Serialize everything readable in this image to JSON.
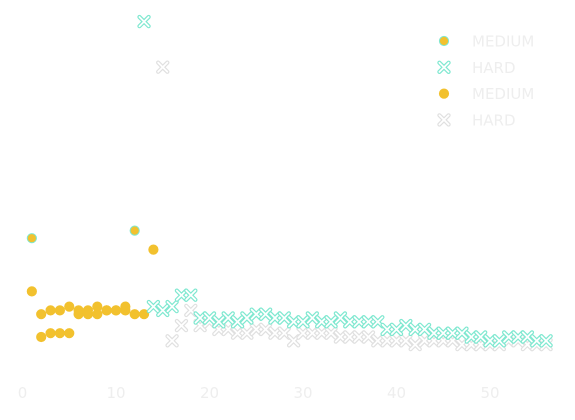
{
  "chart_data": {
    "type": "scatter",
    "title": "",
    "xlabel": "",
    "ylabel": "",
    "xlim": [
      0,
      57
    ],
    "ylim": [
      0,
      1.0
    ],
    "x_ticks": [
      0,
      10,
      20,
      30,
      40,
      50
    ],
    "x_tick_labels": [
      "0",
      "10",
      "20",
      "30",
      "40",
      "50"
    ],
    "grid": false,
    "legend_position": "top-right",
    "series": [
      {
        "name": "MEDIUM",
        "marker": "circle",
        "color": "#f2c12e",
        "edge_color": "#7fe8d0",
        "points": [
          [
            1,
            0.31
          ],
          [
            12,
            0.33
          ]
        ]
      },
      {
        "name": "HARD",
        "marker": "x",
        "color": "#7fe8d0",
        "points": [
          [
            13,
            0.88
          ],
          [
            14,
            0.13
          ],
          [
            15,
            0.12
          ],
          [
            16,
            0.13
          ],
          [
            17,
            0.16
          ],
          [
            18,
            0.16
          ],
          [
            19,
            0.1
          ],
          [
            20,
            0.1
          ],
          [
            21,
            0.09
          ],
          [
            22,
            0.1
          ],
          [
            23,
            0.09
          ],
          [
            24,
            0.1
          ],
          [
            25,
            0.11
          ],
          [
            26,
            0.11
          ],
          [
            27,
            0.1
          ],
          [
            28,
            0.1
          ],
          [
            29,
            0.09
          ],
          [
            30,
            0.09
          ],
          [
            31,
            0.1
          ],
          [
            32,
            0.09
          ],
          [
            33,
            0.09
          ],
          [
            34,
            0.1
          ],
          [
            35,
            0.09
          ],
          [
            36,
            0.09
          ],
          [
            37,
            0.09
          ],
          [
            38,
            0.09
          ],
          [
            39,
            0.07
          ],
          [
            40,
            0.07
          ],
          [
            41,
            0.08
          ],
          [
            42,
            0.07
          ],
          [
            43,
            0.07
          ],
          [
            44,
            0.06
          ],
          [
            45,
            0.06
          ],
          [
            46,
            0.06
          ],
          [
            47,
            0.06
          ],
          [
            48,
            0.05
          ],
          [
            49,
            0.05
          ],
          [
            50,
            0.04
          ],
          [
            51,
            0.04
          ],
          [
            52,
            0.05
          ],
          [
            53,
            0.05
          ],
          [
            54,
            0.05
          ],
          [
            55,
            0.04
          ],
          [
            56,
            0.04
          ]
        ]
      },
      {
        "name": "MEDIUM",
        "marker": "circle",
        "color": "#f2c12e",
        "edge_color": "#f2c12e",
        "points": [
          [
            1,
            0.17
          ],
          [
            2,
            0.11
          ],
          [
            3,
            0.12
          ],
          [
            4,
            0.12
          ],
          [
            5,
            0.13
          ],
          [
            6,
            0.12
          ],
          [
            7,
            0.12
          ],
          [
            8,
            0.13
          ],
          [
            9,
            0.12
          ],
          [
            10,
            0.12
          ],
          [
            11,
            0.12
          ],
          [
            12,
            0.11
          ],
          [
            13,
            0.11
          ],
          [
            14,
            0.28
          ],
          [
            2,
            0.05
          ],
          [
            3,
            0.06
          ],
          [
            4,
            0.06
          ],
          [
            5,
            0.06
          ],
          [
            6,
            0.11
          ],
          [
            7,
            0.11
          ],
          [
            8,
            0.11
          ],
          [
            9,
            0.12
          ],
          [
            10,
            0.12
          ],
          [
            11,
            0.13
          ]
        ]
      },
      {
        "name": "HARD",
        "marker": "x",
        "color": "#e0e0e0",
        "points": [
          [
            15,
            0.76
          ],
          [
            16,
            0.04
          ],
          [
            17,
            0.08
          ],
          [
            18,
            0.12
          ],
          [
            19,
            0.08
          ],
          [
            20,
            0.09
          ],
          [
            21,
            0.07
          ],
          [
            22,
            0.07
          ],
          [
            23,
            0.06
          ],
          [
            24,
            0.06
          ],
          [
            25,
            0.07
          ],
          [
            26,
            0.07
          ],
          [
            27,
            0.06
          ],
          [
            28,
            0.06
          ],
          [
            29,
            0.04
          ],
          [
            30,
            0.06
          ],
          [
            31,
            0.06
          ],
          [
            32,
            0.06
          ],
          [
            33,
            0.06
          ],
          [
            34,
            0.05
          ],
          [
            35,
            0.05
          ],
          [
            36,
            0.05
          ],
          [
            37,
            0.05
          ],
          [
            38,
            0.04
          ],
          [
            39,
            0.04
          ],
          [
            40,
            0.04
          ],
          [
            41,
            0.04
          ],
          [
            42,
            0.03
          ],
          [
            43,
            0.04
          ],
          [
            44,
            0.04
          ],
          [
            45,
            0.04
          ],
          [
            46,
            0.04
          ],
          [
            47,
            0.03
          ],
          [
            48,
            0.03
          ],
          [
            49,
            0.03
          ],
          [
            50,
            0.03
          ],
          [
            51,
            0.03
          ],
          [
            52,
            0.04
          ],
          [
            53,
            0.04
          ],
          [
            54,
            0.03
          ],
          [
            55,
            0.03
          ],
          [
            56,
            0.03
          ]
        ]
      }
    ]
  }
}
